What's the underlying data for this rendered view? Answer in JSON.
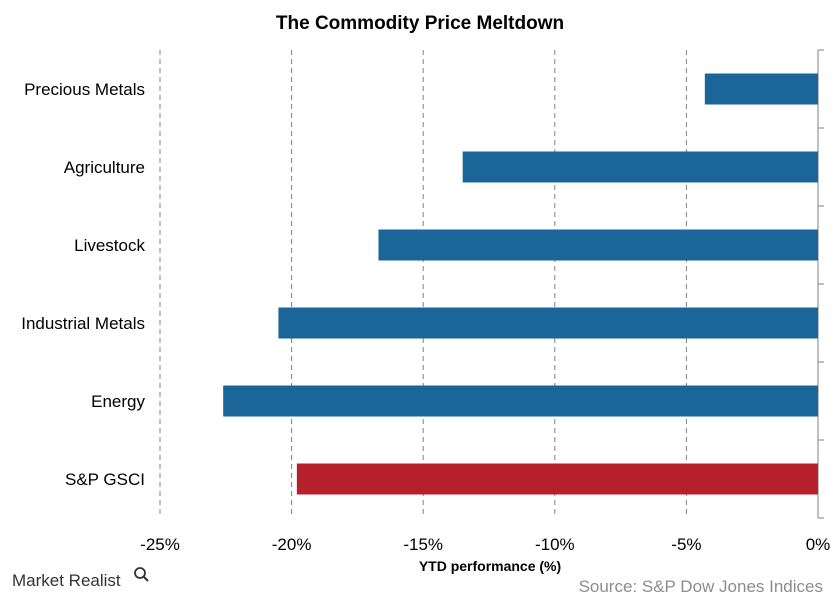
{
  "chart_data": {
    "type": "bar",
    "orientation": "horizontal",
    "title": "The Commodity  Price  Meltdown",
    "categories": [
      "Precious Metals",
      "Agriculture",
      "Livestock",
      "Industrial Metals",
      "Energy",
      "S&P GSCI"
    ],
    "values": [
      -4.3,
      -13.5,
      -16.7,
      -20.5,
      -22.6,
      -19.8
    ],
    "bar_colors": [
      "#1a6699",
      "#1a6699",
      "#1a6699",
      "#1a6699",
      "#1a6699",
      "#b5202a"
    ],
    "xlabel": "YTD performance (%)",
    "xlim": [
      -25,
      0
    ],
    "xticks": [
      -25,
      -20,
      -15,
      -10,
      -5,
      0
    ],
    "xtick_labels": [
      "-25%",
      "-20%",
      "-15%",
      "-10%",
      "-5%",
      "0%"
    ],
    "grid": "vertical dashed"
  },
  "footer": {
    "brand": "Market Realist",
    "source": "Source: S&P Dow Jones Indices"
  },
  "colors": {
    "primary_bar": "#1a6699",
    "highlight_bar": "#b5202a",
    "grid": "#808080",
    "source_text": "#8c8c8c"
  }
}
